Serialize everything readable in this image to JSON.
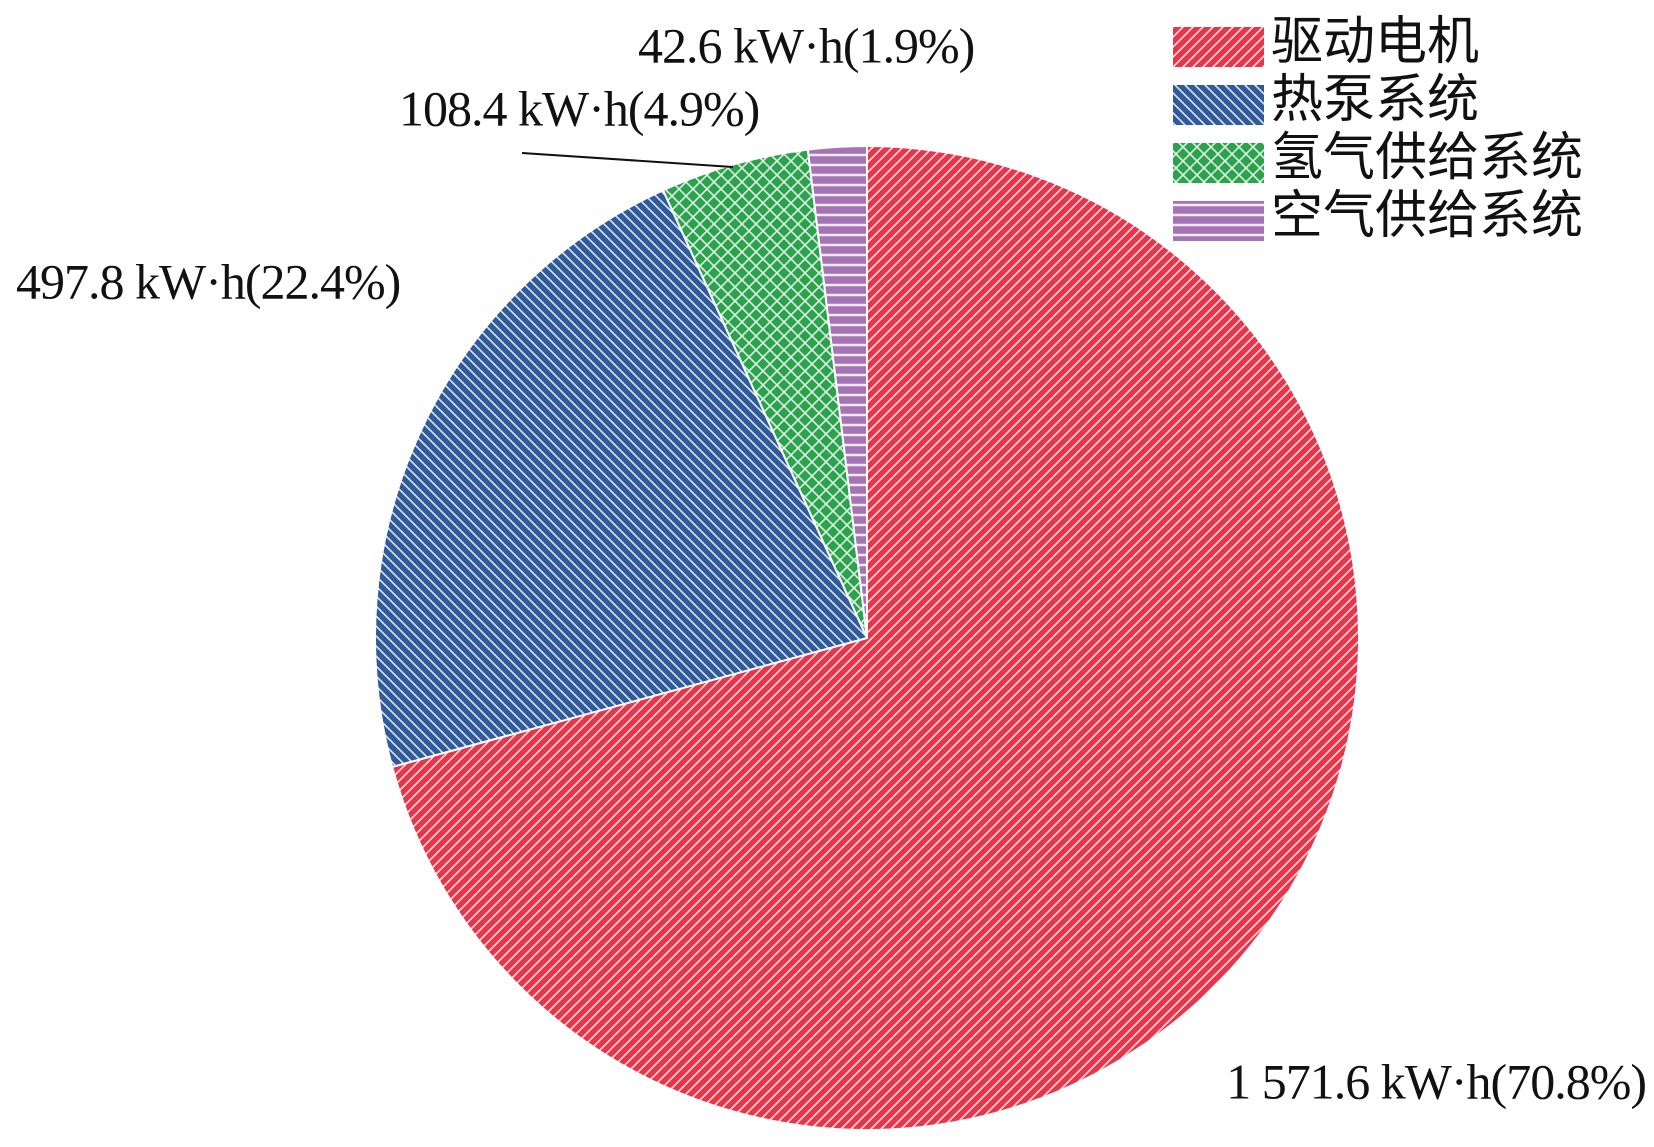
{
  "chart_data": {
    "type": "pie",
    "categories": [
      "驱动电机",
      "热泵系统",
      "氢气供给系统",
      "空气供给系统"
    ],
    "values": [
      1571.6,
      497.8,
      108.4,
      42.6
    ],
    "value_labels": [
      "1 571.6 kW·h(70.8%)",
      "497.8 kW·h(22.4%)",
      "108.4 kW·h(4.9%)",
      "42.6 kW·h(1.9%)"
    ],
    "colors": [
      "#e6364b",
      "#2f5a9e",
      "#2aa34c",
      "#a474b4"
    ],
    "legend": "upper right"
  }
}
